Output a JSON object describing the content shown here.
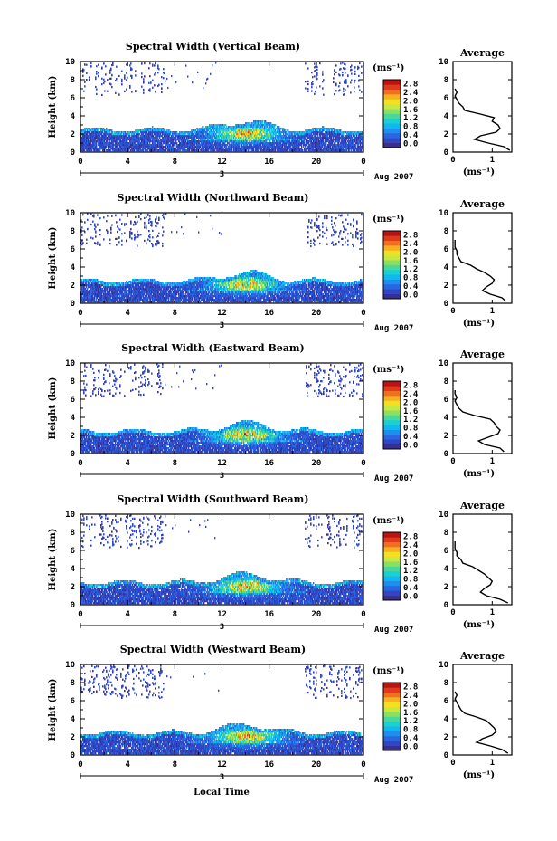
{
  "figure": {
    "xlabel": "Local Time",
    "date_label": "Aug 2007",
    "day_label": "3",
    "cbar_unit": "(ms⁻¹)",
    "avg_title": "Average",
    "avg_xlabel": "(ms⁻¹)"
  },
  "colors": {
    "colormap": [
      "#3a2f8c",
      "#2f47c6",
      "#2a66e0",
      "#1e8ef0",
      "#10b8f0",
      "#1ad0d0",
      "#4ad89a",
      "#8ae060",
      "#c8e840",
      "#f4e020",
      "#f8b020",
      "#f07020",
      "#e03a1a",
      "#b81414"
    ]
  },
  "chart_data": [
    {
      "type": "heatmap",
      "title": "Spectral Width (Vertical Beam)",
      "xlabel": "",
      "ylabel": "Height (km)",
      "x_ticks": [
        "0",
        "4",
        "8",
        "12",
        "16",
        "20",
        "0"
      ],
      "y_ticks": [
        "0",
        "2",
        "4",
        "6",
        "8",
        "10"
      ],
      "xlim": [
        0,
        24
      ],
      "ylim": [
        0,
        10
      ],
      "colorbar": {
        "unit": "(ms⁻¹)",
        "ticks": [
          "2.8",
          "2.4",
          "2.0",
          "1.6",
          "1.2",
          "0.8",
          "0.4",
          "0.0"
        ],
        "range": [
          0,
          2.8
        ]
      },
      "average_profile": {
        "title": "Average",
        "xlabel": "(ms⁻¹)",
        "x_ticks": [
          "0",
          "1"
        ],
        "xlim": [
          0,
          1.5
        ],
        "y_ticks": [
          "0",
          "2",
          "4",
          "6",
          "8",
          "10"
        ],
        "ylim": [
          0,
          10
        ],
        "height": [
          0.2,
          0.6,
          1.0,
          1.4,
          1.8,
          2.2,
          2.6,
          3.0,
          3.4,
          3.8,
          4.2,
          4.6,
          5.0,
          5.4,
          5.8,
          6.2,
          6.6,
          7.0
        ],
        "width": [
          1.45,
          1.3,
          0.9,
          0.55,
          0.7,
          1.1,
          1.2,
          1.15,
          1.0,
          1.05,
          0.7,
          0.3,
          0.25,
          0.15,
          0.1,
          0.05,
          0.1,
          0.05
        ]
      }
    },
    {
      "type": "heatmap",
      "title": "Spectral Width (Northward Beam)",
      "xlabel": "",
      "ylabel": "Height (km)",
      "x_ticks": [
        "0",
        "4",
        "8",
        "12",
        "16",
        "20",
        "0"
      ],
      "y_ticks": [
        "0",
        "2",
        "4",
        "6",
        "8",
        "10"
      ],
      "xlim": [
        0,
        24
      ],
      "ylim": [
        0,
        10
      ],
      "colorbar": {
        "unit": "(ms⁻¹)",
        "ticks": [
          "2.8",
          "2.4",
          "2.0",
          "1.6",
          "1.2",
          "0.8",
          "0.4",
          "0.0"
        ],
        "range": [
          0,
          2.8
        ]
      },
      "average_profile": {
        "title": "Average",
        "xlabel": "(ms⁻¹)",
        "x_ticks": [
          "0",
          "1"
        ],
        "xlim": [
          0,
          1.5
        ],
        "y_ticks": [
          "0",
          "2",
          "4",
          "6",
          "8",
          "10"
        ],
        "ylim": [
          0,
          10
        ],
        "height": [
          0.2,
          0.6,
          1.0,
          1.4,
          1.8,
          2.2,
          2.6,
          3.0,
          3.4,
          3.8,
          4.2,
          4.6,
          5.0,
          5.4,
          5.8,
          6.2,
          6.6,
          7.0
        ],
        "width": [
          1.35,
          1.25,
          0.95,
          0.75,
          0.85,
          1.0,
          1.05,
          0.95,
          0.8,
          0.6,
          0.45,
          0.2,
          0.15,
          0.1,
          0.1,
          0.05,
          0.05,
          0.05
        ]
      }
    },
    {
      "type": "heatmap",
      "title": "Spectral Width (Eastward Beam)",
      "xlabel": "",
      "ylabel": "Height (km)",
      "x_ticks": [
        "0",
        "4",
        "8",
        "12",
        "16",
        "20",
        "0"
      ],
      "y_ticks": [
        "0",
        "2",
        "4",
        "6",
        "8",
        "10"
      ],
      "xlim": [
        0,
        24
      ],
      "ylim": [
        0,
        10
      ],
      "colorbar": {
        "unit": "(ms⁻¹)",
        "ticks": [
          "2.8",
          "2.4",
          "2.0",
          "1.6",
          "1.2",
          "0.8",
          "0.4",
          "0.0"
        ],
        "range": [
          0,
          2.8
        ]
      },
      "average_profile": {
        "title": "Average",
        "xlabel": "(ms⁻¹)",
        "x_ticks": [
          "0",
          "1"
        ],
        "xlim": [
          0,
          1.5
        ],
        "y_ticks": [
          "0",
          "2",
          "4",
          "6",
          "8",
          "10"
        ],
        "ylim": [
          0,
          10
        ],
        "height": [
          0.2,
          0.6,
          1.0,
          1.4,
          1.8,
          2.2,
          2.6,
          3.0,
          3.4,
          3.8,
          4.2,
          4.6,
          5.0,
          5.4,
          5.8,
          6.2,
          6.6,
          7.0
        ],
        "width": [
          1.3,
          1.2,
          0.8,
          0.65,
          0.9,
          1.15,
          1.2,
          1.1,
          1.05,
          0.95,
          0.55,
          0.25,
          0.15,
          0.1,
          0.05,
          0.1,
          0.05,
          0.05
        ]
      }
    },
    {
      "type": "heatmap",
      "title": "Spectral Width (Southward Beam)",
      "xlabel": "",
      "ylabel": "Height (km)",
      "x_ticks": [
        "0",
        "4",
        "8",
        "12",
        "16",
        "20",
        "0"
      ],
      "y_ticks": [
        "0",
        "2",
        "4",
        "6",
        "8",
        "10"
      ],
      "xlim": [
        0,
        24
      ],
      "ylim": [
        0,
        10
      ],
      "colorbar": {
        "unit": "(ms⁻¹)",
        "ticks": [
          "2.8",
          "2.4",
          "2.0",
          "1.6",
          "1.2",
          "0.8",
          "0.4",
          "0.0"
        ],
        "range": [
          0,
          2.8
        ]
      },
      "average_profile": {
        "title": "Average",
        "xlabel": "(ms⁻¹)",
        "x_ticks": [
          "0",
          "1"
        ],
        "xlim": [
          0,
          1.5
        ],
        "y_ticks": [
          "0",
          "2",
          "4",
          "6",
          "8",
          "10"
        ],
        "ylim": [
          0,
          10
        ],
        "height": [
          0.2,
          0.6,
          1.0,
          1.4,
          1.8,
          2.2,
          2.6,
          3.0,
          3.4,
          3.8,
          4.2,
          4.6,
          5.0,
          5.4,
          5.8,
          6.2,
          6.6,
          7.0
        ],
        "width": [
          1.4,
          1.2,
          0.85,
          0.7,
          0.8,
          0.95,
          1.0,
          0.9,
          0.8,
          0.65,
          0.5,
          0.25,
          0.2,
          0.1,
          0.1,
          0.05,
          0.05,
          0.05
        ]
      }
    },
    {
      "type": "heatmap",
      "title": "Spectral Width (Westward Beam)",
      "xlabel": "Local Time",
      "ylabel": "Height (km)",
      "x_ticks": [
        "0",
        "4",
        "8",
        "12",
        "16",
        "20",
        "0"
      ],
      "y_ticks": [
        "0",
        "2",
        "4",
        "6",
        "8",
        "10"
      ],
      "xlim": [
        0,
        24
      ],
      "ylim": [
        0,
        10
      ],
      "colorbar": {
        "unit": "(ms⁻¹)",
        "ticks": [
          "2.8",
          "2.4",
          "2.0",
          "1.6",
          "1.2",
          "0.8",
          "0.4",
          "0.0"
        ],
        "range": [
          0,
          2.8
        ]
      },
      "average_profile": {
        "title": "Average",
        "xlabel": "(ms⁻¹)",
        "x_ticks": [
          "0",
          "1"
        ],
        "xlim": [
          0,
          1.5
        ],
        "y_ticks": [
          "0",
          "2",
          "4",
          "6",
          "8",
          "10"
        ],
        "ylim": [
          0,
          10
        ],
        "height": [
          0.2,
          0.6,
          1.0,
          1.4,
          1.8,
          2.2,
          2.6,
          3.0,
          3.4,
          3.8,
          4.2,
          4.6,
          5.0,
          5.4,
          5.8,
          6.2,
          6.6,
          7.0
        ],
        "width": [
          1.4,
          1.25,
          0.95,
          0.6,
          0.75,
          1.0,
          1.1,
          1.05,
          0.95,
          0.85,
          0.6,
          0.3,
          0.2,
          0.15,
          0.1,
          0.05,
          0.1,
          0.05
        ]
      }
    }
  ]
}
